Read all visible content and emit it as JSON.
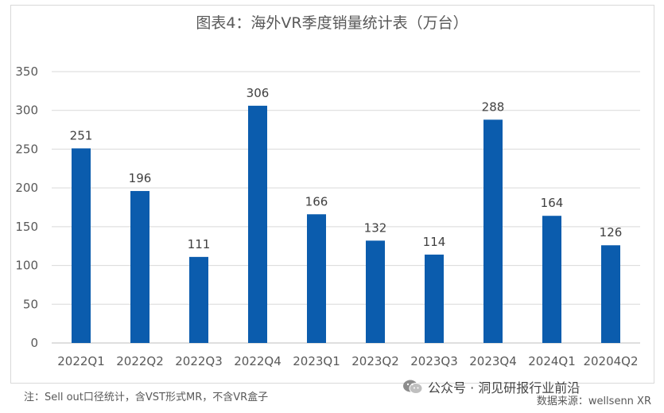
{
  "title": "图表4：海外VR季度销量统计表（万台）",
  "note": "注：Sell out口径统计，含VST形式MR，不含VR盒子",
  "source": "数据来源：wellsenn XR",
  "wechat": {
    "label": "公众号 · 洞见研报行业前沿",
    "icon": "wechat-icon"
  },
  "colors": {
    "bar": "#0b5cad",
    "grid": "#d9d9d9",
    "text": "#595959"
  },
  "chart_data": {
    "type": "bar",
    "title": "图表4：海外VR季度销量统计表（万台）",
    "categories": [
      "2022Q1",
      "2022Q2",
      "2022Q3",
      "2022Q4",
      "2023Q1",
      "2023Q2",
      "2023Q3",
      "2023Q4",
      "2024Q1",
      "20204Q2"
    ],
    "values": [
      251,
      196,
      111,
      306,
      166,
      132,
      114,
      288,
      164,
      126
    ],
    "yticks": [
      0,
      50,
      100,
      150,
      200,
      250,
      300,
      350
    ],
    "ylim": [
      0,
      350
    ],
    "grid": true,
    "legend": "none",
    "data_labels": true
  }
}
